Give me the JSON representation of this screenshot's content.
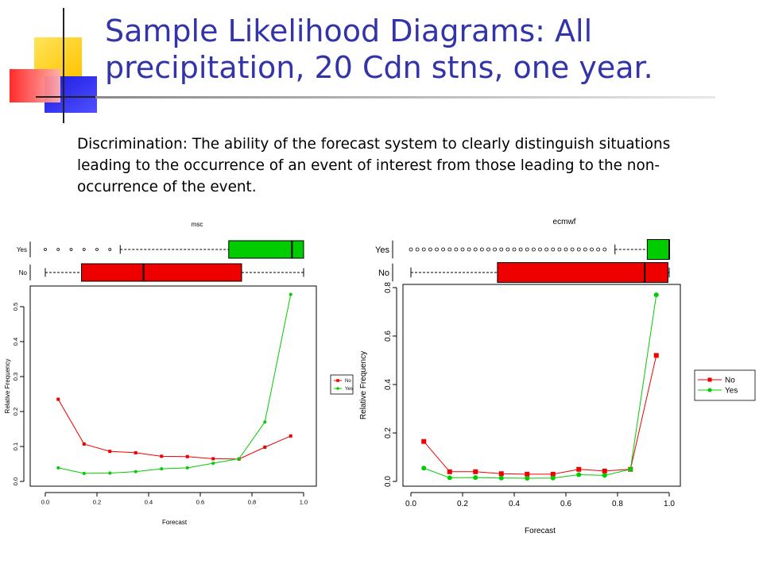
{
  "slide": {
    "title_line1": "Sample Likelihood Diagrams: All",
    "title_line2": "precipitation, 20 Cdn stns, one year.",
    "body": "Discrimination: The ability of the forecast system to clearly distinguish situations leading to the occurrence of an event of interest from those leading to the non-occurrence of the event."
  },
  "colors": {
    "title": "#3333aa",
    "no": "#ee0000",
    "yes": "#00cc00",
    "logo_yellow": "#ffd200",
    "logo_red": "#ff3a3a",
    "logo_blue": "#2b2bd6"
  },
  "chart_data": [
    {
      "type": "line",
      "title": "msc",
      "xlabel": "Forecast",
      "ylabel": "Relative Frequency",
      "xlim": [
        0,
        1
      ],
      "ylim": [
        0,
        0.55
      ],
      "xticks": [
        "0.0",
        "0.2",
        "0.4",
        "0.6",
        "0.8",
        "1.0"
      ],
      "yticks": [
        "0.0",
        "0.1",
        "0.2",
        "0.3",
        "0.4",
        "0.5"
      ],
      "x": [
        0.05,
        0.15,
        0.25,
        0.35,
        0.45,
        0.55,
        0.65,
        0.75,
        0.85,
        0.95
      ],
      "series": [
        {
          "name": "No",
          "color": "#ee0000",
          "marker": "square",
          "values": [
            0.235,
            0.107,
            0.086,
            0.082,
            0.072,
            0.071,
            0.065,
            0.064,
            0.098,
            0.13
          ]
        },
        {
          "name": "Yes",
          "color": "#00cc00",
          "marker": "diamond",
          "values": [
            0.039,
            0.023,
            0.024,
            0.028,
            0.036,
            0.039,
            0.052,
            0.065,
            0.17,
            0.535
          ]
        }
      ],
      "legend": "right",
      "boxplots": {
        "labels": [
          "Yes",
          "No"
        ],
        "Yes": {
          "whisker_low": 0.29,
          "q1": 0.71,
          "median": 0.955,
          "q3": 1.0,
          "whisker_high": 1.0,
          "outliers": [
            0.0,
            0.05,
            0.1,
            0.15,
            0.2,
            0.25
          ]
        },
        "No": {
          "whisker_low": 0.0,
          "q1": 0.14,
          "median": 0.38,
          "q3": 0.76,
          "whisker_high": 1.0,
          "outliers": []
        }
      }
    },
    {
      "type": "line",
      "title": "ecmwf",
      "xlabel": "Forecast",
      "ylabel": "Relative Frequency",
      "xlim": [
        0,
        1
      ],
      "ylim": [
        0,
        0.8
      ],
      "xticks": [
        "0.0",
        "0.2",
        "0.4",
        "0.6",
        "0.8",
        "1.0"
      ],
      "yticks": [
        "0.0",
        "0.2",
        "0.4",
        "0.6",
        "0.8"
      ],
      "x": [
        0.05,
        0.15,
        0.25,
        0.35,
        0.45,
        0.55,
        0.65,
        0.75,
        0.85,
        0.95
      ],
      "series": [
        {
          "name": "No",
          "color": "#ee0000",
          "marker": "square",
          "values": [
            0.165,
            0.04,
            0.04,
            0.032,
            0.03,
            0.03,
            0.05,
            0.043,
            0.05,
            0.52
          ]
        },
        {
          "name": "Yes",
          "color": "#00cc00",
          "marker": "diamond",
          "values": [
            0.055,
            0.015,
            0.016,
            0.014,
            0.013,
            0.014,
            0.028,
            0.025,
            0.05,
            0.77
          ]
        }
      ],
      "legend": "right",
      "boxplots": {
        "labels": [
          "Yes",
          "No"
        ],
        "Yes": {
          "whisker_low": 0.79,
          "q1": 0.915,
          "median": 1.0,
          "q3": 1.0,
          "whisker_high": 1.0,
          "outliers": [
            0.0,
            0.025,
            0.05,
            0.075,
            0.1,
            0.125,
            0.15,
            0.175,
            0.2,
            0.225,
            0.25,
            0.275,
            0.3,
            0.325,
            0.35,
            0.375,
            0.4,
            0.425,
            0.45,
            0.475,
            0.5,
            0.525,
            0.55,
            0.575,
            0.6,
            0.625,
            0.65,
            0.675,
            0.7,
            0.725,
            0.75
          ]
        },
        "No": {
          "whisker_low": 0.0,
          "q1": 0.335,
          "median": 0.905,
          "q3": 0.995,
          "whisker_high": 1.0,
          "outliers": []
        }
      }
    }
  ]
}
